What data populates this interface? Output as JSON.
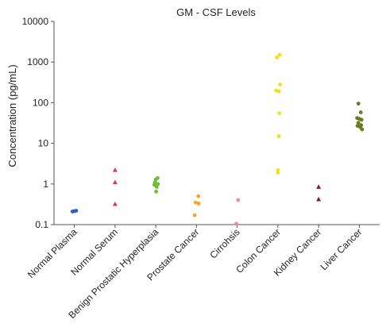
{
  "chart_data": {
    "type": "scatter",
    "title": "GM - CSF Levels",
    "ylabel": "Concentration (pg/mL)",
    "xlabel": "",
    "yscale": "log",
    "ylim": [
      0.1,
      10000
    ],
    "yticks": [
      "0.1",
      "1",
      "10",
      "100",
      "1000",
      "10000"
    ],
    "grid": false,
    "categories": [
      "Normal Plasma",
      "Normal Serum",
      "Benign Prostatic Hyperplasia",
      "Prostate Cancer",
      "Cirrohsis",
      "Colon Cancer",
      "Kidney Cancer",
      "Liver Cancer"
    ],
    "series": [
      {
        "category": "Normal Plasma",
        "marker": "circle",
        "color": "#2f5fc4",
        "points": [
          [
            -0.1,
            0.21
          ],
          [
            0.0,
            0.215
          ],
          [
            0.1,
            0.22
          ]
        ]
      },
      {
        "category": "Normal Serum",
        "marker": "triangle",
        "color": "#e0335a",
        "points": [
          [
            0,
            2.2
          ],
          [
            0,
            1.1
          ],
          [
            0,
            0.32
          ]
        ]
      },
      {
        "category": "Benign Prostatic Hyperplasia",
        "marker": "circle",
        "color": "#6dbf3a",
        "points": [
          [
            0.1,
            1.4
          ],
          [
            0.0,
            1.3
          ],
          [
            -0.05,
            1.1
          ],
          [
            0.12,
            1.0
          ],
          [
            -0.08,
            0.95
          ],
          [
            0.05,
            0.85
          ],
          [
            0.02,
            0.65
          ]
        ]
      },
      {
        "category": "Prostate Cancer",
        "marker": "circle",
        "color": "#f5a623",
        "points": [
          [
            0.1,
            0.5
          ],
          [
            -0.05,
            0.35
          ],
          [
            0.12,
            0.33
          ],
          [
            -0.1,
            0.17
          ]
        ]
      },
      {
        "category": "Cirrohsis",
        "marker": "circle",
        "color": "#f08aa0",
        "points": [
          [
            0.05,
            0.4
          ],
          [
            -0.05,
            0.105
          ]
        ]
      },
      {
        "category": "Colon Cancer",
        "marker": "circle",
        "color": "#f2e21a",
        "points": [
          [
            -0.05,
            1300
          ],
          [
            0.1,
            1500
          ],
          [
            0.12,
            280
          ],
          [
            -0.1,
            200
          ],
          [
            0.05,
            190
          ],
          [
            0.08,
            55
          ],
          [
            0.05,
            15
          ],
          [
            0.0,
            2.2
          ],
          [
            0.0,
            1.9
          ]
        ]
      },
      {
        "category": "Kidney Cancer",
        "marker": "triangle",
        "color": "#8b1a1a",
        "points": [
          [
            0.0,
            0.85
          ],
          [
            0.0,
            0.42
          ]
        ]
      },
      {
        "category": "Liver Cancer",
        "marker": "circle",
        "color": "#6b7a1f",
        "points": [
          [
            -0.05,
            95
          ],
          [
            0.08,
            58
          ],
          [
            -0.12,
            42
          ],
          [
            0.0,
            40
          ],
          [
            0.12,
            38
          ],
          [
            -0.05,
            32
          ],
          [
            0.1,
            28
          ],
          [
            -0.1,
            27
          ],
          [
            0.05,
            25
          ],
          [
            0.15,
            22
          ]
        ]
      }
    ]
  }
}
